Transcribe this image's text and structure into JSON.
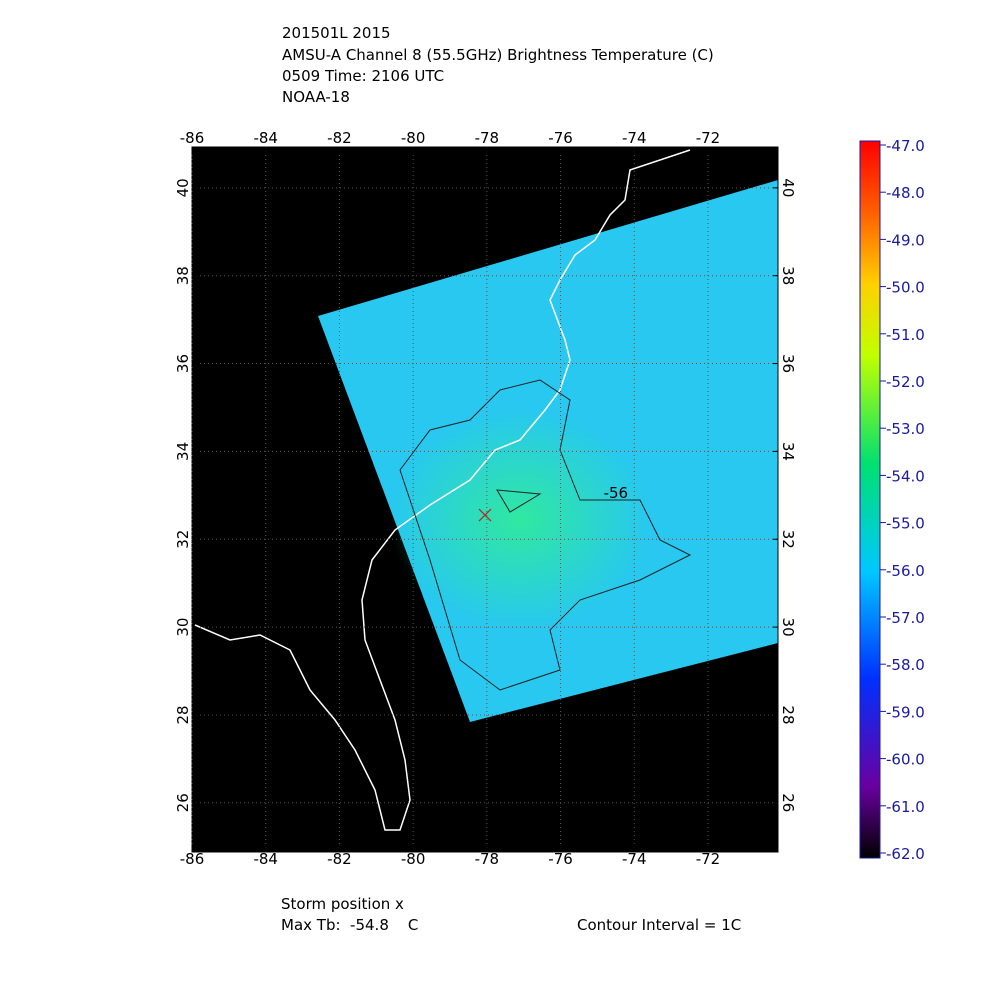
{
  "header": {
    "lines": [
      "201501L 2015",
      "AMSU-A Channel 8 (55.5GHz) Brightness Temperature (C)",
      "0509 Time: 2106 UTC",
      "NOAA-18"
    ]
  },
  "chart_data": {
    "type": "map",
    "xlim": [
      -86,
      -70.1
    ],
    "ylim": [
      24.88,
      40.93
    ],
    "xticks": [
      -86,
      -84,
      -82,
      -80,
      -78,
      -76,
      -74,
      -72
    ],
    "yticks": [
      26,
      28,
      30,
      32,
      34,
      36,
      38,
      40
    ],
    "storm": {
      "lon": -78.05,
      "lat": 32.55
    },
    "contour_label": {
      "text": "-56",
      "lon": -74.5,
      "lat": 33.05
    },
    "colorbar": {
      "clim": [
        -62,
        -47
      ],
      "ticks": [
        {
          "value": -47,
          "label": "-47.0"
        },
        {
          "value": -48,
          "label": "-48.0"
        },
        {
          "value": -49,
          "label": "-49.0"
        },
        {
          "value": -50,
          "label": "-50.0"
        },
        {
          "value": -51,
          "label": "-51.0"
        },
        {
          "value": -52,
          "label": "-52.0"
        },
        {
          "value": -53,
          "label": "-53.0"
        },
        {
          "value": -54,
          "label": "-54.0"
        },
        {
          "value": -55,
          "label": "-55.0"
        },
        {
          "value": -56,
          "label": "-56.0"
        },
        {
          "value": -57,
          "label": "-57.0"
        },
        {
          "value": -58,
          "label": "-58.0"
        },
        {
          "value": -59,
          "label": "-59.0"
        },
        {
          "value": -60,
          "label": "-60.0"
        },
        {
          "value": -61,
          "label": "-61.0"
        },
        {
          "value": -62,
          "label": "-62.0"
        }
      ]
    }
  },
  "footer": {
    "storm_position": "Storm position x",
    "max_tb": "Max Tb:  -54.8    C",
    "contour_interval": "Contour Interval = 1C"
  }
}
